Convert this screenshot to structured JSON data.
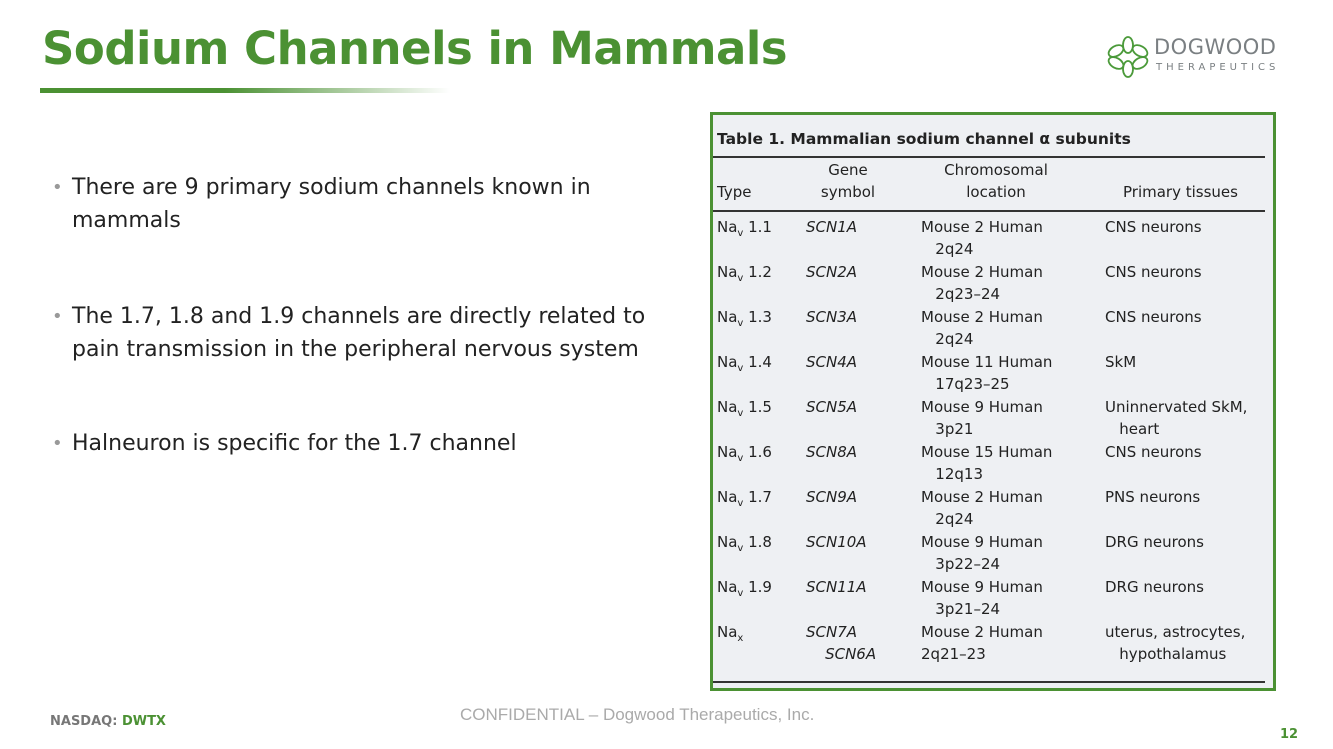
{
  "title": "Sodium Channels in Mammals",
  "logo": {
    "name": "DOGWOOD",
    "sub": "THERAPEUTICS"
  },
  "bullets": [
    "There are 9 primary sodium channels known in mammals",
    "The 1.7, 1.8 and 1.9 channels are directly related to pain transmission in the peripheral nervous system",
    "Halneuron is specific for the 1.7 channel"
  ],
  "table": {
    "caption": "Table 1. Mammalian sodium channel α subunits",
    "headers": [
      "Type",
      "Gene\nsymbol",
      "Chromosomal\nlocation",
      "Primary tissues"
    ],
    "rows": [
      {
        "type": "Na",
        "sub": "v",
        "num": " 1.1",
        "gene": "SCN1A",
        "loc": "Mouse 2 Human\n   2q24",
        "tissue": "CNS neurons"
      },
      {
        "type": "Na",
        "sub": "v",
        "num": " 1.2",
        "gene": "SCN2A",
        "loc": "Mouse 2 Human\n   2q23–24",
        "tissue": "CNS neurons"
      },
      {
        "type": "Na",
        "sub": "v",
        "num": " 1.3",
        "gene": "SCN3A",
        "loc": "Mouse 2 Human\n   2q24",
        "tissue": "CNS neurons"
      },
      {
        "type": "Na",
        "sub": "v",
        "num": " 1.4",
        "gene": "SCN4A",
        "loc": "Mouse 11 Human\n   17q23–25",
        "tissue": "SkM"
      },
      {
        "type": "Na",
        "sub": "v",
        "num": " 1.5",
        "gene": "SCN5A",
        "loc": "Mouse 9 Human\n   3p21",
        "tissue": "Uninnervated SkM,\n   heart"
      },
      {
        "type": "Na",
        "sub": "v",
        "num": " 1.6",
        "gene": "SCN8A",
        "loc": "Mouse 15 Human\n   12q13",
        "tissue": "CNS neurons"
      },
      {
        "type": "Na",
        "sub": "v",
        "num": " 1.7",
        "gene": "SCN9A",
        "loc": "Mouse 2 Human\n   2q24",
        "tissue": "PNS neurons"
      },
      {
        "type": "Na",
        "sub": "v",
        "num": " 1.8",
        "gene": "SCN10A",
        "loc": "Mouse 9 Human\n   3p22–24",
        "tissue": "DRG neurons"
      },
      {
        "type": "Na",
        "sub": "v",
        "num": " 1.9",
        "gene": "SCN11A",
        "loc": "Mouse 9 Human\n   3p21–24",
        "tissue": "DRG neurons"
      },
      {
        "type": "Na",
        "sub": "x",
        "num": "",
        "gene": "SCN7A\n    SCN6A",
        "loc": "Mouse 2 Human\n2q21–23",
        "tissue": "uterus, astrocytes,\n   hypothalamus"
      }
    ]
  },
  "footer": {
    "exchange": "NASDAQ:",
    "ticker": "DWTX",
    "confidential": "CONFIDENTIAL –  Dogwood Therapeutics, Inc.",
    "page": "12"
  }
}
